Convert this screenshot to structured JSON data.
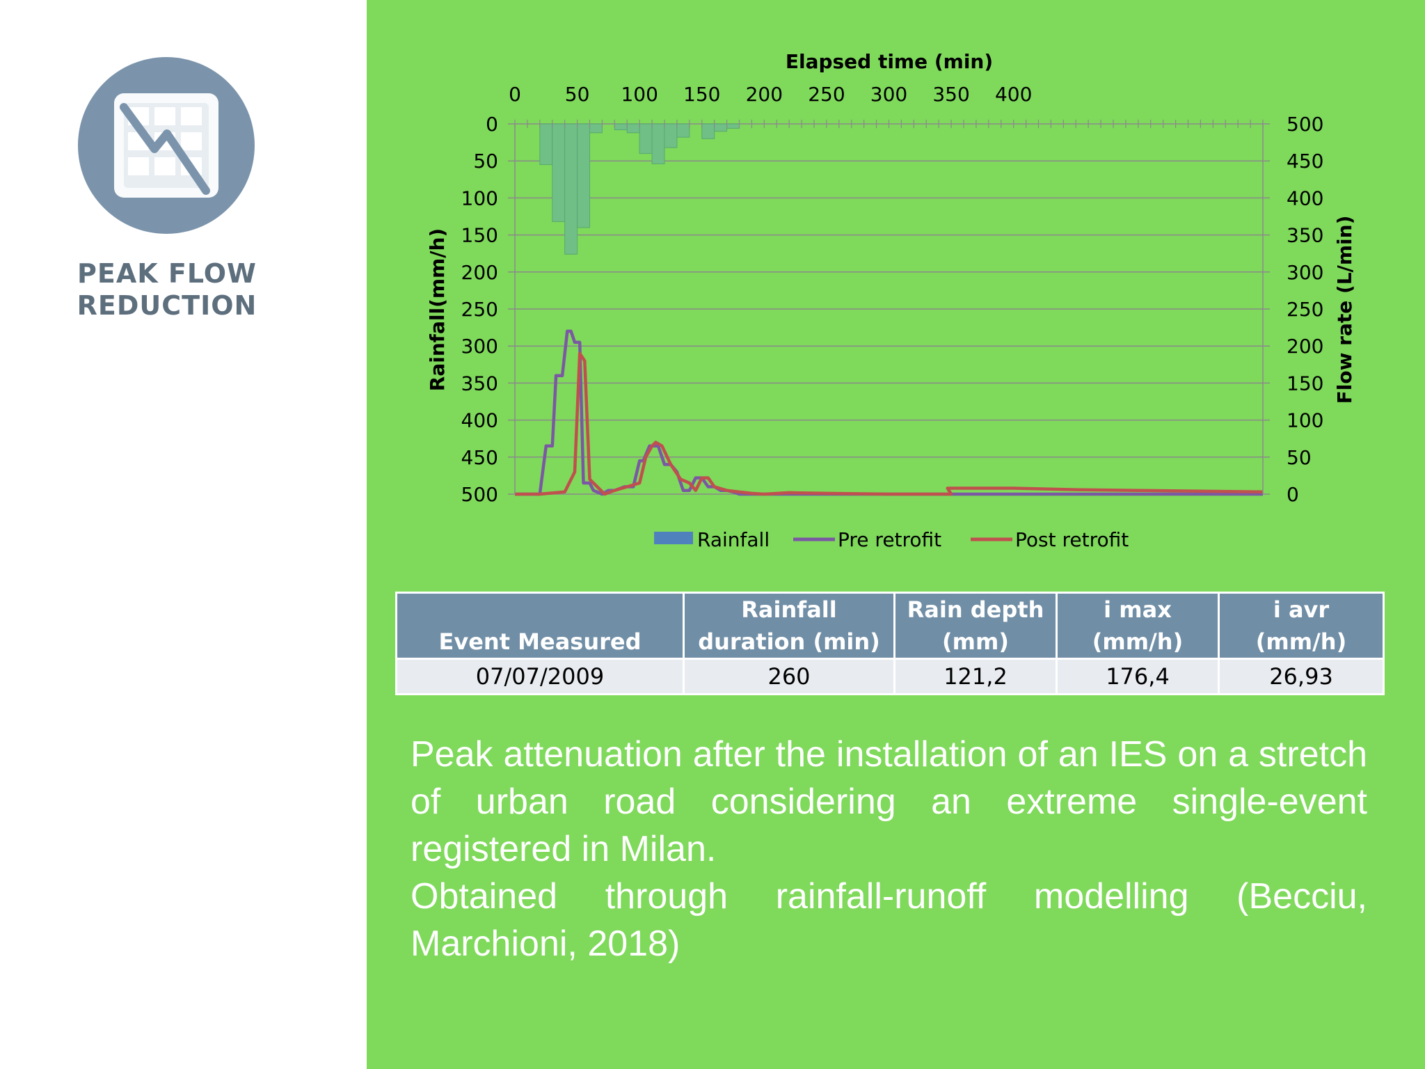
{
  "logo": {
    "icon": "peak-flow-chart-icon",
    "title_line1": "PEAK FLOW",
    "title_line2": "REDUCTION",
    "colors": {
      "circle": "#7b94ab",
      "text": "#5d6e7d"
    }
  },
  "chart_data": {
    "type": "bar+line",
    "xlabel": "Elapsed time (min)",
    "ylabel_left": "Rainfall(mm/h)",
    "ylabel_right": "Flow rate (L/min)",
    "x_range": [
      0,
      600
    ],
    "x_ticks": [
      0,
      50,
      100,
      150,
      200,
      250,
      300,
      350,
      400
    ],
    "y_left_range": [
      0,
      500
    ],
    "y_left_inverted": true,
    "y_left_ticks": [
      0,
      50,
      100,
      150,
      200,
      250,
      300,
      350,
      400,
      450,
      500
    ],
    "y_right_range": [
      0,
      500
    ],
    "y_right_ticks": [
      0,
      50,
      100,
      150,
      200,
      250,
      300,
      350,
      400,
      450,
      500
    ],
    "grid": true,
    "legend_position": "bottom",
    "legend": [
      "Rainfall",
      "Pre retrofit",
      "Post retrofit"
    ],
    "rainfall_bins": [
      {
        "x0": 20,
        "x1": 30,
        "y": 55
      },
      {
        "x0": 30,
        "x1": 40,
        "y": 132
      },
      {
        "x0": 40,
        "x1": 50,
        "y": 176
      },
      {
        "x0": 50,
        "x1": 60,
        "y": 140
      },
      {
        "x0": 60,
        "x1": 70,
        "y": 12
      },
      {
        "x0": 80,
        "x1": 90,
        "y": 8
      },
      {
        "x0": 90,
        "x1": 100,
        "y": 12
      },
      {
        "x0": 100,
        "x1": 110,
        "y": 40
      },
      {
        "x0": 110,
        "x1": 120,
        "y": 54
      },
      {
        "x0": 120,
        "x1": 130,
        "y": 32
      },
      {
        "x0": 130,
        "x1": 140,
        "y": 18
      },
      {
        "x0": 150,
        "x1": 160,
        "y": 20
      },
      {
        "x0": 160,
        "x1": 170,
        "y": 10
      },
      {
        "x0": 170,
        "x1": 180,
        "y": 6
      }
    ],
    "series": [
      {
        "name": "Pre retrofit",
        "color": "#7b58a3",
        "x": [
          0,
          20,
          25,
          30,
          33,
          38,
          42,
          45,
          48,
          52,
          55,
          60,
          63,
          70,
          75,
          80,
          88,
          95,
          100,
          103,
          108,
          115,
          120,
          125,
          130,
          135,
          140,
          145,
          150,
          155,
          160,
          165,
          170,
          175,
          180,
          190,
          200,
          220,
          250,
          300,
          350,
          400,
          450,
          500,
          550,
          600
        ],
        "y": [
          0,
          0,
          65,
          65,
          160,
          160,
          220,
          220,
          205,
          205,
          15,
          15,
          5,
          0,
          5,
          5,
          10,
          10,
          45,
          45,
          65,
          65,
          40,
          40,
          30,
          5,
          5,
          22,
          22,
          10,
          10,
          5,
          5,
          3,
          0,
          0,
          0,
          0,
          0,
          0,
          0,
          0,
          0,
          0,
          0,
          0
        ]
      },
      {
        "name": "Post retrofit",
        "color": "#c0504d",
        "x": [
          0,
          20,
          40,
          48,
          52,
          56,
          60,
          66,
          72,
          80,
          90,
          100,
          105,
          110,
          113,
          118,
          125,
          133,
          140,
          145,
          150,
          155,
          160,
          170,
          180,
          190,
          200,
          220,
          250,
          300,
          350,
          347,
          352,
          400,
          450,
          500,
          550,
          600
        ],
        "y": [
          0,
          0,
          3,
          30,
          190,
          180,
          20,
          10,
          0,
          5,
          10,
          15,
          50,
          65,
          70,
          65,
          40,
          20,
          15,
          5,
          22,
          22,
          10,
          5,
          3,
          1,
          0,
          2,
          1,
          0,
          0,
          8,
          8,
          8,
          6,
          5,
          4,
          3
        ]
      }
    ]
  },
  "table": {
    "headers": [
      "Event Measured",
      "Rainfall\nduration (min)",
      "Rain depth\n(mm)",
      "i max\n(mm/h)",
      "i avr\n(mm/h)"
    ],
    "rows": [
      [
        "07/07/2009",
        "260",
        "121,2",
        "176,4",
        "26,93"
      ]
    ]
  },
  "caption": {
    "line1": "Peak attenuation after the installation of an IES on a stretch of urban road considering an extreme single-event registered in Milan.",
    "line2": "Obtained through rainfall-runoff modelling (Becciu, Marchioni, 2018)"
  },
  "colors": {
    "background_green": "#7fd95b",
    "rainfall_bar": "#4f81bd",
    "gridline": "#8a8a8a",
    "table_header": "#708ea6",
    "table_cell": "#e8ebf0"
  }
}
